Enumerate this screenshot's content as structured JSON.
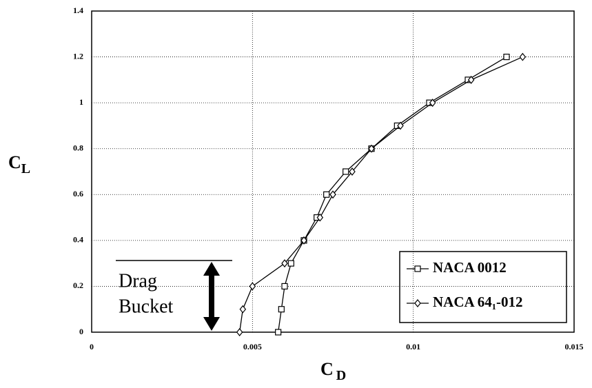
{
  "chart_data": {
    "type": "line",
    "x_label": {
      "main": "C",
      "sub": "D"
    },
    "y_label": {
      "main": "C",
      "sub": "L"
    },
    "xlim": [
      0,
      0.015
    ],
    "xticks": [
      0,
      0.005,
      0.01,
      0.015
    ],
    "ylim": [
      0,
      1.4
    ],
    "yticks": [
      0,
      0.2,
      0.4,
      0.6,
      0.8,
      1,
      1.2,
      1.4
    ],
    "grid": true,
    "legend": "lower right",
    "annotation": [
      "Drag",
      "Bucket"
    ],
    "series": [
      {
        "name": "NACA 0012",
        "color": "#000000",
        "marker": "square",
        "x": [
          0.0058,
          0.0059,
          0.006,
          0.0062,
          0.0066,
          0.007,
          0.0073,
          0.0079,
          0.0087,
          0.0095,
          0.0105,
          0.0117,
          0.0129
        ],
        "values": [
          0,
          0.1,
          0.2,
          0.3,
          0.4,
          0.5,
          0.6,
          0.7,
          0.8,
          0.9,
          1,
          1.1,
          1.2
        ]
      },
      {
        "name": "NACA 64₁-012",
        "color": "#000000",
        "marker": "diamond",
        "x": [
          0.0046,
          0.0047,
          0.005,
          0.006,
          0.0066,
          0.0071,
          0.0075,
          0.0081,
          0.0087,
          0.0096,
          0.0106,
          0.0118,
          0.0134
        ],
        "values": [
          0,
          0.1,
          0.2,
          0.3,
          0.4,
          0.5,
          0.6,
          0.7,
          0.8,
          0.9,
          1,
          1.1,
          1.2
        ]
      }
    ]
  }
}
